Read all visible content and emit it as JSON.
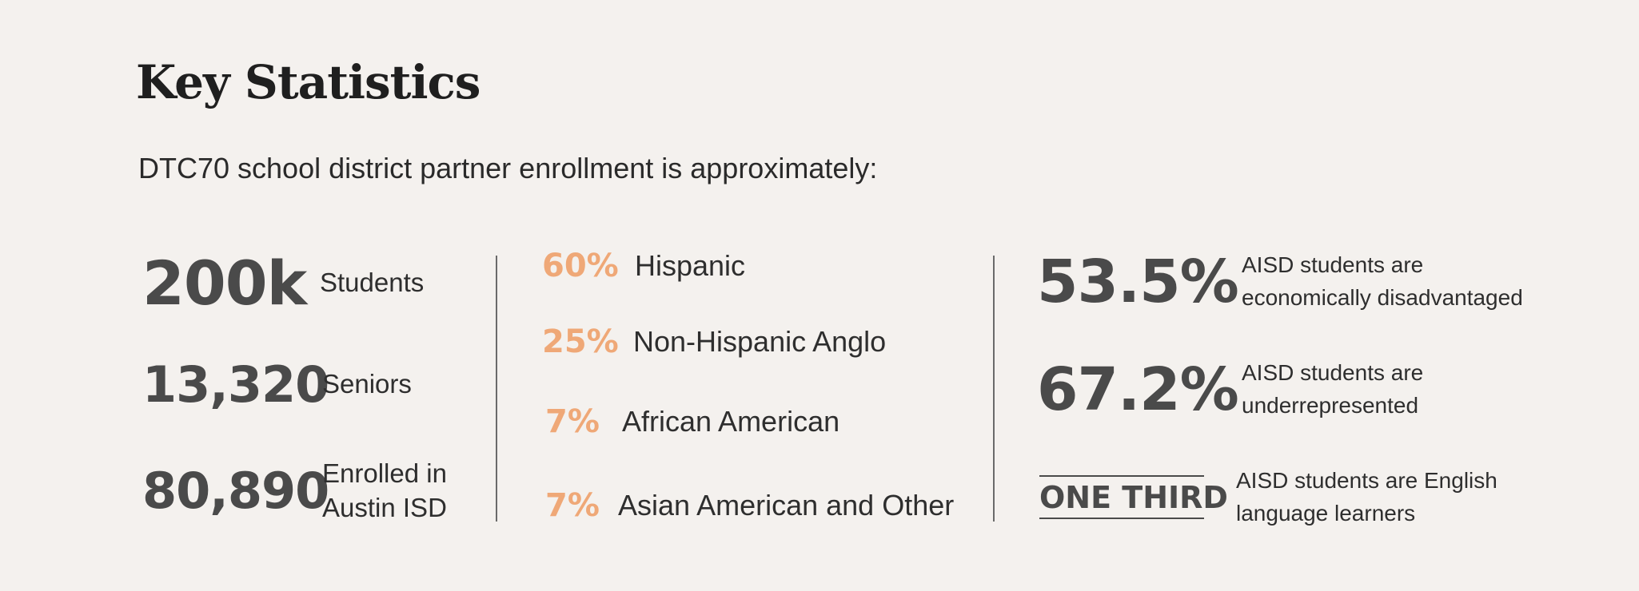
{
  "header": {
    "title": "Key Statistics",
    "subtitle": "DTC70 school district partner enrollment is approximately:"
  },
  "column1": [
    {
      "value": "200k",
      "label": "Students"
    },
    {
      "value": "13,320",
      "label": "Seniors"
    },
    {
      "value": "80,890",
      "label_line1": "Enrolled in",
      "label_line2": "Austin ISD"
    }
  ],
  "column2": [
    {
      "value": "60%",
      "label": "Hispanic"
    },
    {
      "value": "25%",
      "label": "Non-Hispanic Anglo"
    },
    {
      "value": "7%",
      "label": "African American"
    },
    {
      "value": "7%",
      "label": "Asian American and Other"
    }
  ],
  "column3": [
    {
      "value": "53.5%",
      "label_line1": "AISD students are",
      "label_line2": "economically disadvantaged"
    },
    {
      "value": "67.2%",
      "label_line1": "AISD students are",
      "label_line2": "underrepresented"
    },
    {
      "value": "ONE THIRD",
      "label_line1": "AISD students are English",
      "label_line2": "language learners"
    }
  ],
  "colors": {
    "background": "#f4f1ee",
    "accent": "#efa877",
    "number": "#4a4a4a",
    "text": "#2e2e2e"
  }
}
